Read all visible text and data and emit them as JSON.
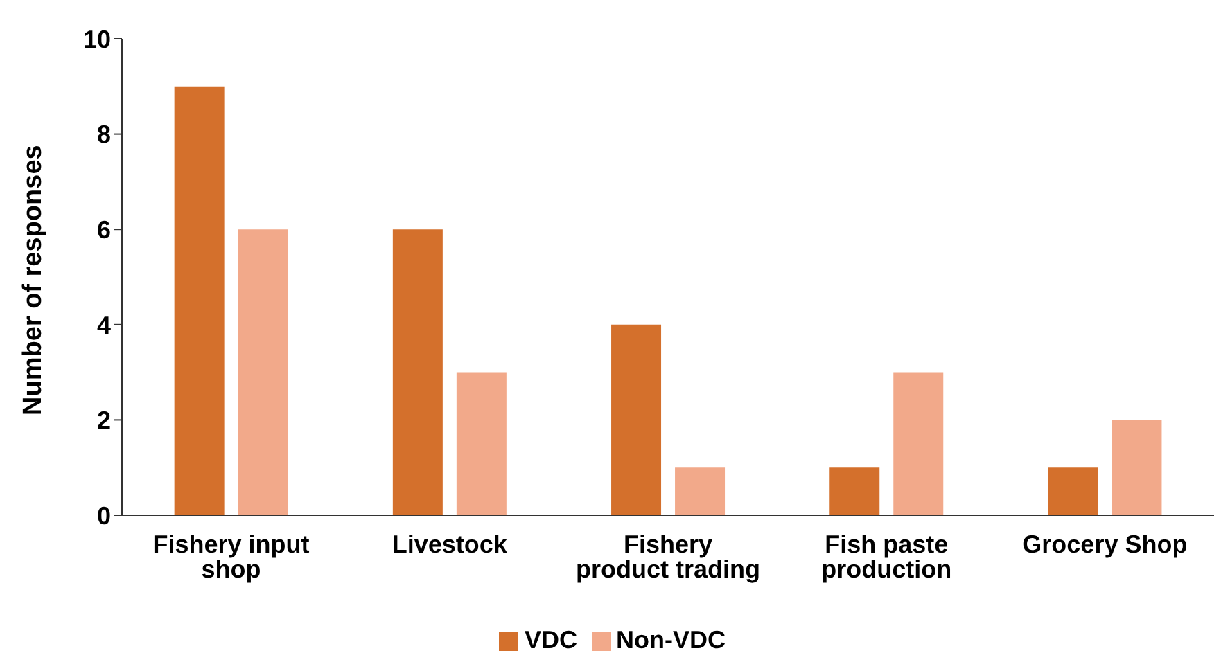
{
  "chart_data": {
    "type": "bar",
    "ylabel": "Number of responses",
    "categories": [
      "Fishery input shop",
      "Livestock",
      "Fishery product trading",
      "Fish paste production",
      "Grocery Shop"
    ],
    "series": [
      {
        "name": "VDC",
        "color": "#d4702c",
        "values": [
          9,
          6,
          4,
          1,
          1
        ]
      },
      {
        "name": "Non-VDC",
        "color": "#f2a98a",
        "values": [
          6,
          3,
          1,
          3,
          2
        ]
      }
    ],
    "ylim": [
      0,
      10
    ],
    "yticks": [
      0,
      2,
      4,
      6,
      8,
      10
    ],
    "grid": false,
    "legend": "bottom"
  }
}
